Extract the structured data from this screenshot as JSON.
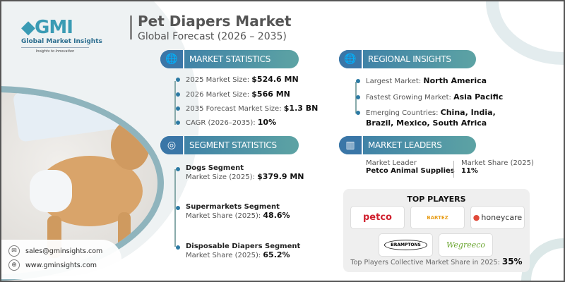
{
  "brand": {
    "logo_text": "GMI",
    "name": "Global Market Insights",
    "tagline": "Insights to Innovation"
  },
  "header": {
    "title": "Pet Diapers Market",
    "subtitle": "Global Forecast (2026 – 2035)"
  },
  "market_statistics": {
    "heading": "MARKET STATISTICS",
    "items": [
      {
        "label": "2025 Market Size:",
        "value": "$524.6 MN"
      },
      {
        "label": "2026 Market Size:",
        "value": "$566 MN"
      },
      {
        "label": "2035 Forecast Market Size:",
        "value": "$1.3 BN"
      },
      {
        "label": "CAGR (2026–2035):",
        "value": "10%"
      }
    ]
  },
  "regional_insights": {
    "heading": "REGIONAL INSIGHTS",
    "items": [
      {
        "label": "Largest Market:",
        "value": "North America"
      },
      {
        "label": "Fastest Growing Market:",
        "value": "Asia Pacific"
      },
      {
        "label": "Emerging Countries:",
        "value": "China, India,",
        "value2": "Brazil, Mexico, South Africa"
      }
    ]
  },
  "segment_statistics": {
    "heading": "SEGMENT STATISTICS",
    "items": [
      {
        "title": "Dogs Segment",
        "label": "Market Size (2025):",
        "value": "$379.9 MN"
      },
      {
        "title": "Supermarkets Segment",
        "label": "Market Share (2025):",
        "value": "48.6%"
      },
      {
        "title": "Disposable Diapers Segment",
        "label": "Market Share (2025):",
        "value": "65.2%"
      }
    ]
  },
  "market_leaders": {
    "heading": "MARKET LEADERS",
    "leader_label": "Market Leader",
    "leader": "Petco Animal Supplies",
    "share_label": "Market Share (2025)",
    "share": "11%"
  },
  "top_players": {
    "heading": "TOP PLAYERS",
    "logos": [
      "petco",
      "BARTEZ",
      "honeycare",
      "BRAMPTONS",
      "Wegreeco"
    ],
    "footer_label": "Top Players Collective Market Share in 2025:",
    "footer_value": "35%"
  },
  "contact": {
    "email": "sales@gminsights.com",
    "website": "www.gminsights.com"
  },
  "colors": {
    "accent_blue": "#3a7ca8",
    "accent_teal": "#5da3a4",
    "petco_red": "#d0202e"
  }
}
